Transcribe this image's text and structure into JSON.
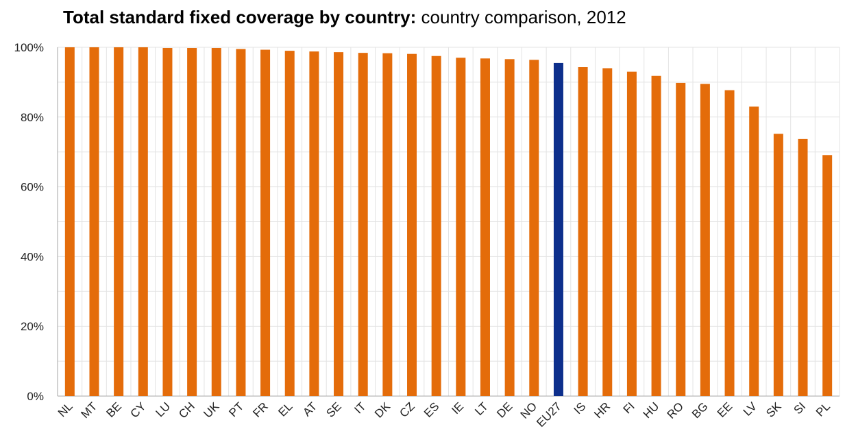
{
  "chart_data": {
    "type": "bar",
    "title_bold": "Total standard fixed coverage by country:",
    "title_rest": " country comparison, 2012",
    "categories": [
      "NL",
      "MT",
      "BE",
      "CY",
      "LU",
      "CH",
      "UK",
      "PT",
      "FR",
      "EL",
      "AT",
      "SE",
      "IT",
      "DK",
      "CZ",
      "ES",
      "IE",
      "LT",
      "DE",
      "NO",
      "EU27",
      "IS",
      "HR",
      "FI",
      "HU",
      "RO",
      "BG",
      "EE",
      "LV",
      "SK",
      "SI",
      "PL"
    ],
    "values": [
      100,
      100,
      100,
      100,
      99.8,
      99.8,
      99.8,
      99.5,
      99.3,
      99.0,
      98.8,
      98.6,
      98.4,
      98.3,
      98.1,
      97.5,
      97.0,
      96.8,
      96.6,
      96.4,
      95.5,
      94.3,
      94.0,
      93.0,
      91.8,
      89.8,
      89.5,
      87.7,
      83.0,
      75.2,
      73.7,
      69.1
    ],
    "highlight_category": "EU27",
    "yticks": [
      "0%",
      "20%",
      "40%",
      "60%",
      "80%",
      "100%"
    ],
    "ylim": [
      0,
      100
    ],
    "grid": true,
    "colors": {
      "bar": "#E46C0A",
      "highlight": "#0D2F8C",
      "grid": "#E3E3E3",
      "axis": "#A6A6A6"
    }
  }
}
